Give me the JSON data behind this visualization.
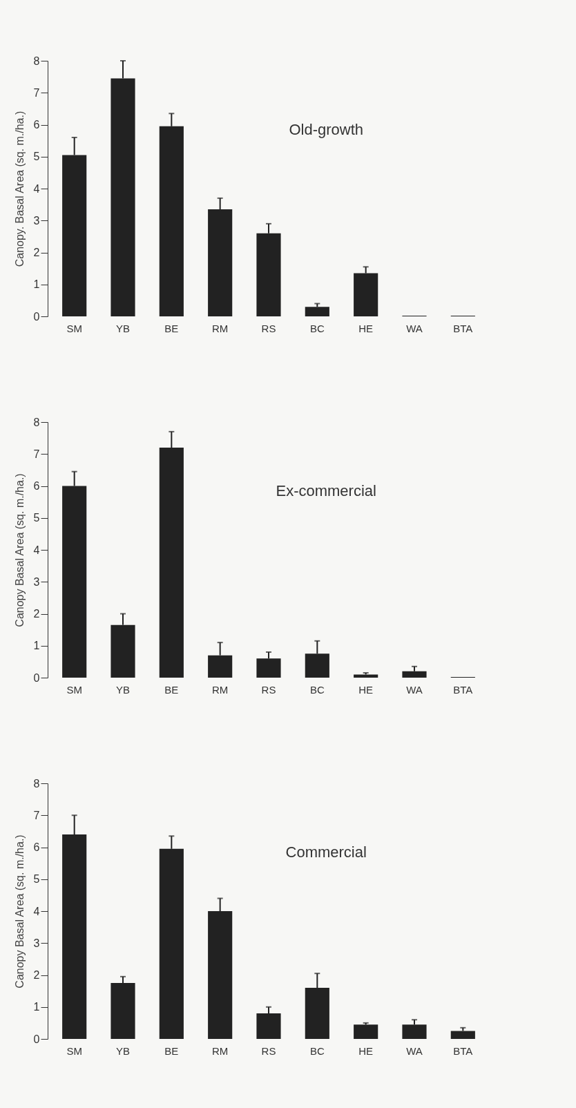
{
  "chart_data": [
    {
      "type": "bar",
      "title": "Old-growth",
      "ylabel": "Canopy. Basal Area (sq. m./ha.)",
      "categories": [
        "SM",
        "YB",
        "BE",
        "RM",
        "RS",
        "BC",
        "HE",
        "WA",
        "BTA"
      ],
      "values": [
        5.05,
        7.45,
        5.95,
        3.35,
        2.6,
        0.3,
        1.35,
        0.02,
        0.02
      ],
      "errors": [
        [
          5.05,
          5.6
        ],
        [
          7.45,
          8.0
        ],
        [
          5.95,
          6.35
        ],
        [
          3.35,
          3.7
        ],
        [
          2.6,
          2.9
        ],
        [
          0.3,
          0.4
        ],
        [
          1.35,
          1.55
        ],
        null,
        null
      ],
      "color": "#222222",
      "ylim": [
        0,
        8
      ],
      "yticks": [
        0,
        1,
        2,
        3,
        4,
        5,
        6,
        7,
        8
      ],
      "grid": false
    },
    {
      "type": "bar",
      "title": "Ex-commercial",
      "ylabel": "Canopy Basal Area (sq. m./ha.)",
      "categories": [
        "SM",
        "YB",
        "BE",
        "RM",
        "RS",
        "BC",
        "HE",
        "WA",
        "BTA"
      ],
      "values": [
        6.0,
        1.65,
        7.2,
        0.7,
        0.6,
        0.75,
        0.1,
        0.2,
        0.02
      ],
      "errors": [
        [
          6.0,
          6.45
        ],
        [
          1.65,
          2.0
        ],
        [
          7.2,
          7.7
        ],
        [
          0.7,
          1.1
        ],
        [
          0.6,
          0.8
        ],
        [
          0.75,
          1.15
        ],
        [
          0.1,
          0.15
        ],
        [
          0.2,
          0.35
        ],
        null
      ],
      "color": "#222222",
      "ylim": [
        0,
        8
      ],
      "yticks": [
        0,
        1,
        2,
        3,
        4,
        5,
        6,
        7,
        8
      ],
      "grid": false
    },
    {
      "type": "bar",
      "title": "Commercial",
      "ylabel": "Canopy Basal Area (sq. m./ha.)",
      "categories": [
        "SM",
        "YB",
        "BE",
        "RM",
        "RS",
        "BC",
        "HE",
        "WA",
        "BTA"
      ],
      "values": [
        6.4,
        1.75,
        5.95,
        4.0,
        0.8,
        1.6,
        0.45,
        0.45,
        0.25
      ],
      "errors": [
        [
          6.4,
          7.0
        ],
        [
          1.75,
          1.95
        ],
        [
          5.95,
          6.35
        ],
        [
          4.0,
          4.4
        ],
        [
          0.8,
          1.0
        ],
        [
          1.6,
          2.05
        ],
        [
          0.45,
          0.5
        ],
        [
          0.45,
          0.6
        ],
        [
          0.25,
          0.35
        ]
      ],
      "color": "#222222",
      "ylim": [
        0,
        8
      ],
      "yticks": [
        0,
        1,
        2,
        3,
        4,
        5,
        6,
        7,
        8
      ],
      "grid": false
    }
  ]
}
